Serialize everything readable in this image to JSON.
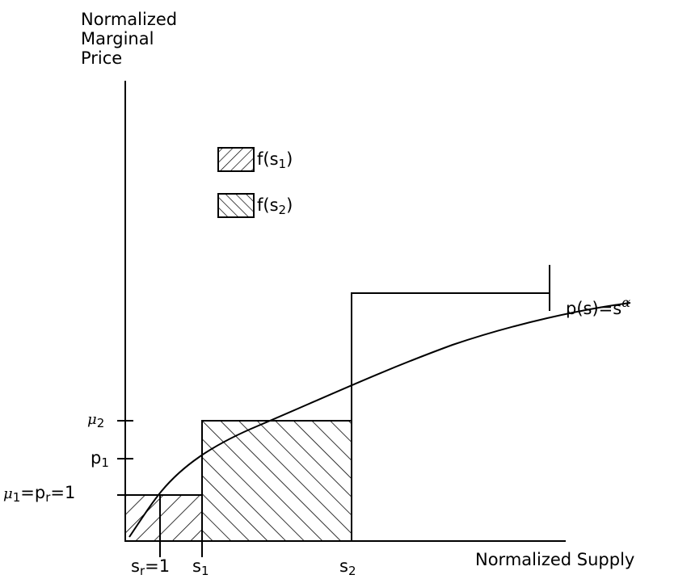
{
  "y_axis": {
    "line1": "Normalized",
    "line2": "Marginal",
    "line3": "Price"
  },
  "x_axis": {
    "label": "Normalized Supply"
  },
  "curve": {
    "label_prefix": "p(s)=s",
    "label_exp": "α"
  },
  "legend": {
    "item1": {
      "label": "f(s",
      "sub": "1",
      "suffix": ")"
    },
    "item2": {
      "label": "f(s",
      "sub": "2",
      "suffix": ")"
    }
  },
  "y_ticks": {
    "mu2": {
      "sym": "μ",
      "sub": "2"
    },
    "p1": {
      "text": "p",
      "sub": "1"
    },
    "mu1": {
      "sym": "μ",
      "sub": "1",
      "rest1": "=p",
      "sub_r": "r",
      "rest2": "=1"
    }
  },
  "x_ticks": {
    "sr": {
      "text": "s",
      "sub": "r",
      "rest": "=1"
    },
    "s1": {
      "text": "s",
      "sub": "1"
    },
    "s2": {
      "text": "s",
      "sub": "2"
    }
  },
  "colors": {
    "ink": "#000000",
    "background": "#ffffff"
  }
}
